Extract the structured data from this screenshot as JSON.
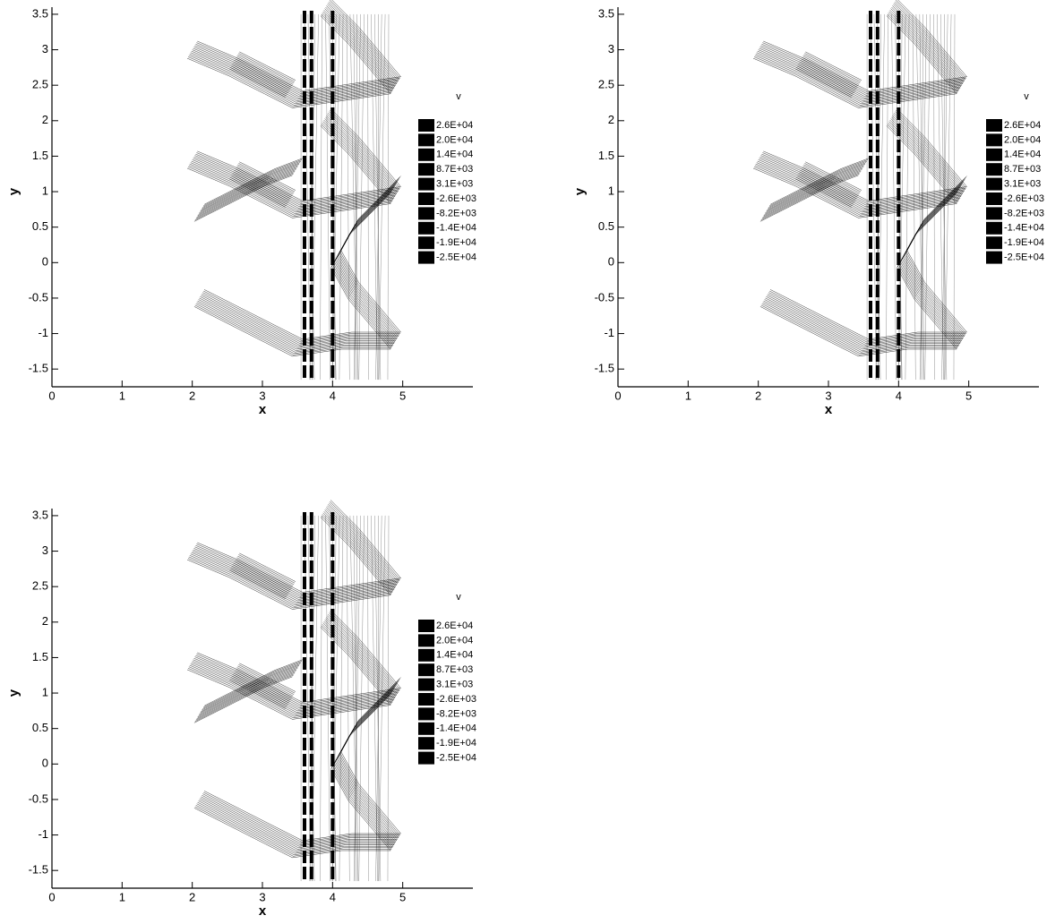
{
  "chart_data": [
    {
      "type": "contour",
      "x_label": "x",
      "y_label": "y",
      "legend_title": "v",
      "color": "#000000",
      "xlim": [
        0,
        6
      ],
      "ylim": [
        -1.75,
        3.6
      ],
      "xticks": [
        0,
        1,
        2,
        3,
        4,
        5
      ],
      "yticks": [
        -1.5,
        -1,
        -0.5,
        0,
        0.5,
        1,
        1.5,
        2,
        2.5,
        3,
        3.5
      ],
      "levels": [
        {
          "value": 26000,
          "label": "2.6E+04"
        },
        {
          "value": 20000,
          "label": "2.0E+04"
        },
        {
          "value": 14000,
          "label": "1.4E+04"
        },
        {
          "value": 8700,
          "label": "8.7E+03"
        },
        {
          "value": 3100,
          "label": "3.1E+03"
        },
        {
          "value": -2600,
          "label": "-2.6E+03"
        },
        {
          "value": -8200,
          "label": "-8.2E+03"
        },
        {
          "value": -14000,
          "label": "-1.4E+04"
        },
        {
          "value": -19000,
          "label": "-1.9E+04"
        },
        {
          "value": -25000,
          "label": "-2.5E+04"
        }
      ]
    },
    {
      "type": "contour",
      "x_label": "x",
      "y_label": "y",
      "legend_title": "v",
      "color": "#000000",
      "xlim": [
        0,
        6
      ],
      "ylim": [
        -1.75,
        3.6
      ],
      "xticks": [
        0,
        1,
        2,
        3,
        4,
        5
      ],
      "yticks": [
        -1.5,
        -1,
        -0.5,
        0,
        0.5,
        1,
        1.5,
        2,
        2.5,
        3,
        3.5
      ],
      "levels": [
        {
          "value": 26000,
          "label": "2.6E+04"
        },
        {
          "value": 20000,
          "label": "2.0E+04"
        },
        {
          "value": 14000,
          "label": "1.4E+04"
        },
        {
          "value": 8700,
          "label": "8.7E+03"
        },
        {
          "value": 3100,
          "label": "3.1E+03"
        },
        {
          "value": -2600,
          "label": "-2.6E+03"
        },
        {
          "value": -8200,
          "label": "-8.2E+03"
        },
        {
          "value": -14000,
          "label": "-1.4E+04"
        },
        {
          "value": -19000,
          "label": "-1.9E+04"
        },
        {
          "value": -25000,
          "label": "-2.5E+04"
        }
      ]
    },
    {
      "type": "contour",
      "x_label": "x",
      "y_label": "y",
      "legend_title": "v",
      "color": "#000000",
      "xlim": [
        0,
        6
      ],
      "ylim": [
        -1.75,
        3.6
      ],
      "xticks": [
        0,
        1,
        2,
        3,
        4,
        5
      ],
      "yticks": [
        -1.5,
        -1,
        -0.5,
        0,
        0.5,
        1,
        1.5,
        2,
        2.5,
        3,
        3.5
      ],
      "levels": [
        {
          "value": 26000,
          "label": "2.6E+04"
        },
        {
          "value": 20000,
          "label": "2.0E+04"
        },
        {
          "value": 14000,
          "label": "1.4E+04"
        },
        {
          "value": 8700,
          "label": "8.7E+03"
        },
        {
          "value": 3100,
          "label": "3.1E+03"
        },
        {
          "value": -2600,
          "label": "-2.6E+03"
        },
        {
          "value": -8200,
          "label": "-8.2E+03"
        },
        {
          "value": -14000,
          "label": "-1.4E+04"
        },
        {
          "value": -19000,
          "label": "-1.9E+04"
        },
        {
          "value": -25000,
          "label": "-2.5E+04"
        }
      ]
    }
  ]
}
